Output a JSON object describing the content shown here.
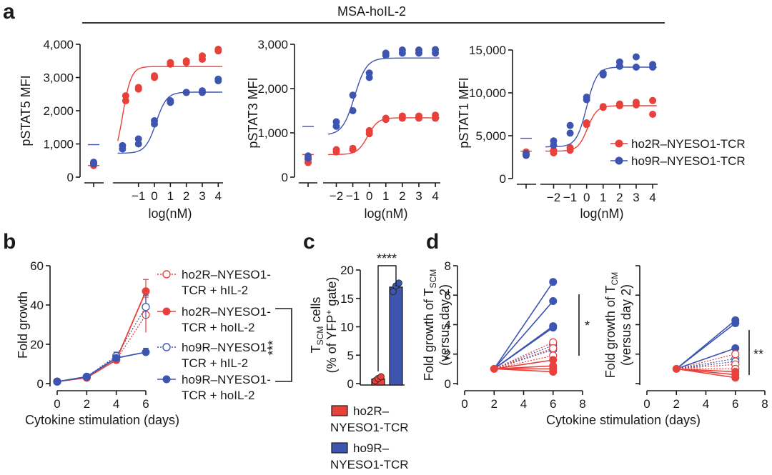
{
  "colors": {
    "red": "#e8403a",
    "blue": "#3d55b0",
    "red_light": "#ee7a72",
    "blue_light": "#6f83c8"
  },
  "panel_a": {
    "letter": "a",
    "header": "MSA-hoIL-2",
    "xlabel": "log(nM)",
    "legend": [
      {
        "label": "ho2R–NYESO1-TCR",
        "color": "red"
      },
      {
        "label": "ho9R–NYESO1-TCR",
        "color": "blue"
      }
    ]
  },
  "panel_b": {
    "letter": "b",
    "xlabel": "Cytokine stimulation (days)",
    "ylabel": "Fold growth",
    "xticks": [
      "0",
      "2",
      "4",
      "6"
    ],
    "yticks": [
      "0",
      "20",
      "40",
      "60"
    ],
    "significance": "***",
    "legend": [
      {
        "line1": "ho2R–NYESO1-",
        "line2": "TCR + hIL-2"
      },
      {
        "line1": "ho2R–NYESO1-",
        "line2": "TCR + hoIL-2"
      },
      {
        "line1": "ho9R–NYESO1-",
        "line2": "TCR + hIL-2"
      },
      {
        "line1": "ho9R–NYESO1-",
        "line2": "TCR + hoIL-2"
      }
    ]
  },
  "panel_c": {
    "letter": "c",
    "yticks": [
      "0",
      "5",
      "10",
      "15",
      "20"
    ],
    "ylabel_line1_main": "T",
    "ylabel_line1_sub": "SCM",
    "ylabel_line1_rest": " cells",
    "ylabel_line2_main": "(% of YFP",
    "ylabel_line2_sup": "+",
    "ylabel_line2_rest": " gate)",
    "significance": "****",
    "legend": [
      {
        "line1": "ho2R–",
        "line2": "NYESO1-TCR",
        "color": "red"
      },
      {
        "line1": "ho9R–",
        "line2": "NYESO1-TCR",
        "color": "blue"
      }
    ]
  },
  "panel_d": {
    "letter": "d",
    "xlabel": "Cytokine stimulation (days)",
    "xticks": [
      "0",
      "2",
      "4",
      "6",
      "8"
    ],
    "left": {
      "yticks": [
        "0",
        "2",
        "4",
        "6",
        "8"
      ],
      "ylabel_line1_main": "Fold growth of T",
      "ylabel_line1_sub": "SCM",
      "ylabel_line2": "(versus day 2)",
      "significance": "*"
    },
    "right": {
      "ylabel_line1_main": "Fold growth of T",
      "ylabel_line1_sub": "CM",
      "ylabel_line2": "(versus day 2)",
      "significance": "**"
    }
  },
  "chart_data": [
    {
      "type": "scatter",
      "panel": "a1",
      "ylabel": "pSTAT5 MFI",
      "xlim": [
        -2.6,
        4.3
      ],
      "ylim": [
        0,
        4000
      ],
      "xticks": [
        -1,
        0,
        1,
        2,
        3,
        4
      ],
      "xtick_labels": [
        "−1",
        "0",
        "1",
        "2",
        "3",
        "4"
      ],
      "yticks": [
        0,
        1000,
        2000,
        3000,
        4000
      ],
      "ytick_labels": [
        "0",
        "1,000",
        "2,000",
        "3,000",
        "4,000"
      ],
      "series": [
        {
          "name": "ho2R–NYESO1-TCR",
          "color": "red",
          "x": [
            -1.8,
            -1.8,
            -1,
            -1,
            0,
            0,
            1,
            1,
            2,
            2,
            3,
            3,
            4,
            4
          ],
          "y": [
            2300,
            2450,
            2650,
            2700,
            3050,
            3000,
            3400,
            3450,
            3500,
            3450,
            3650,
            3550,
            3850,
            3800
          ],
          "untreated": [
            350,
            420
          ],
          "fit": {
            "bottom": 350,
            "top": 3330,
            "ec50": -2.0,
            "hill": 1.6
          }
        },
        {
          "name": "ho9R–NYESO1-TCR",
          "color": "blue",
          "x": [
            -2,
            -2,
            -1,
            -1,
            0,
            0,
            1,
            1,
            2,
            2,
            3,
            3,
            4,
            4
          ],
          "y": [
            850,
            950,
            1000,
            1150,
            1600,
            1700,
            2250,
            2300,
            2550,
            2550,
            2550,
            2600,
            2900,
            2950
          ],
          "untreated": [
            450,
            400
          ],
          "fit": {
            "bottom": 720,
            "top": 2560,
            "ec50": 0.1,
            "hill": 1.3
          }
        }
      ]
    },
    {
      "type": "scatter",
      "panel": "a2",
      "ylabel": "pSTAT3 MFI",
      "xlim": [
        -2.8,
        4.3
      ],
      "ylim": [
        0,
        3000
      ],
      "xticks": [
        -2,
        -1,
        0,
        1,
        2,
        3,
        4
      ],
      "xtick_labels": [
        "−2",
        "−1",
        "0",
        "1",
        "2",
        "3",
        "4"
      ],
      "yticks": [
        0,
        1000,
        2000,
        3000
      ],
      "ytick_labels": [
        "0",
        "1,000",
        "2,000",
        "3,000"
      ],
      "series": [
        {
          "name": "ho2R–NYESO1-TCR",
          "color": "red",
          "x": [
            -2,
            -2,
            -1,
            -1,
            0,
            0,
            1,
            1,
            2,
            2,
            3,
            3,
            4,
            4
          ],
          "y": [
            570,
            620,
            620,
            650,
            980,
            1050,
            1300,
            1330,
            1380,
            1330,
            1380,
            1330,
            1400,
            1330
          ],
          "untreated": [
            330,
            400
          ],
          "fit": {
            "bottom": 510,
            "top": 1340,
            "ec50": -0.1,
            "hill": 1.4
          }
        },
        {
          "name": "ho9R–NYESO1-TCR",
          "color": "blue",
          "x": [
            -2,
            -2,
            -1,
            -1,
            0,
            0,
            1,
            1,
            2,
            2,
            3,
            3,
            4,
            4
          ],
          "y": [
            1150,
            1250,
            1500,
            1850,
            2250,
            2350,
            2750,
            2800,
            2800,
            2870,
            2800,
            2870,
            2800,
            2880
          ],
          "untreated": [
            480,
            430
          ],
          "fit": {
            "bottom": 950,
            "top": 2690,
            "ec50": -0.9,
            "hill": 1.2
          }
        }
      ]
    },
    {
      "type": "scatter",
      "panel": "a3",
      "ylabel": "pSTAT1 MFI",
      "xlim": [
        -2.8,
        4.3
      ],
      "ylim": [
        0,
        15000
      ],
      "xticks": [
        -2,
        -1,
        0,
        1,
        2,
        3,
        4
      ],
      "xtick_labels": [
        "−2",
        "−1",
        "0",
        "1",
        "2",
        "3",
        "4"
      ],
      "yticks": [
        0,
        5000,
        10000,
        15000
      ],
      "ytick_labels": [
        "0",
        "5,000",
        "10,000",
        "15,000"
      ],
      "series": [
        {
          "name": "ho2R–NYESO1-TCR",
          "color": "red",
          "x": [
            -2,
            -2,
            -1,
            -1,
            0,
            0,
            1,
            1,
            2,
            2,
            3,
            3,
            4,
            4
          ],
          "y": [
            3000,
            3300,
            3300,
            3600,
            6300,
            6500,
            8300,
            8400,
            8500,
            8700,
            8600,
            8900,
            7500,
            9100
          ],
          "untreated": [
            2800,
            3100
          ],
          "fit": {
            "bottom": 3200,
            "top": 8500,
            "ec50": 0.05,
            "hill": 1.5
          }
        },
        {
          "name": "ho9R–NYESO1-TCR",
          "color": "blue",
          "x": [
            -2,
            -2,
            -1,
            -1,
            0,
            0,
            1,
            1,
            2,
            2,
            3,
            3,
            4,
            4
          ],
          "y": [
            3900,
            4400,
            5300,
            6200,
            9200,
            9500,
            12100,
            12300,
            13100,
            13600,
            13000,
            14200,
            13300,
            13000
          ],
          "untreated": [
            2700,
            2900
          ],
          "fit": {
            "bottom": 3700,
            "top": 13000,
            "ec50": 0.0,
            "hill": 1.4
          }
        }
      ]
    },
    {
      "type": "line",
      "panel": "b",
      "xlabel": "Cytokine stimulation (days)",
      "ylabel": "Fold growth",
      "xlim": [
        0,
        6
      ],
      "ylim": [
        0,
        60
      ],
      "x": [
        0,
        2,
        4,
        6
      ],
      "series": [
        {
          "name": "ho2R–NYESO1-TCR + hIL-2",
          "color": "red",
          "style": "dotted",
          "marker": "open",
          "values": [
            1,
            3,
            12,
            35
          ],
          "err": [
            0,
            0.5,
            2,
            9
          ]
        },
        {
          "name": "ho2R–NYESO1-TCR + hoIL-2",
          "color": "red",
          "style": "solid",
          "marker": "filled",
          "values": [
            1,
            3,
            12,
            47
          ],
          "err": [
            0,
            0.5,
            2,
            6
          ]
        },
        {
          "name": "ho9R–NYESO1-TCR + hIL-2",
          "color": "blue",
          "style": "dotted",
          "marker": "open",
          "values": [
            1,
            3.5,
            14,
            39
          ],
          "err": [
            0,
            0.5,
            2,
            6
          ]
        },
        {
          "name": "ho9R–NYESO1-TCR + hoIL-2",
          "color": "blue",
          "style": "solid",
          "marker": "filled",
          "values": [
            1,
            3.5,
            13,
            16
          ],
          "err": [
            0,
            0.5,
            1.5,
            2
          ]
        }
      ]
    },
    {
      "type": "bar",
      "panel": "c",
      "ylim": [
        0,
        20
      ],
      "categories": [
        "ho2R–NYESO1-TCR",
        "ho9R–NYESO1-TCR"
      ],
      "values": [
        0.8,
        17
      ],
      "points": [
        [
          0.5,
          0.9,
          1.2
        ],
        [
          16.2,
          17.2,
          17.7
        ]
      ]
    },
    {
      "type": "line",
      "panel": "d-left",
      "xlabel": "Cytokine stimulation (days)",
      "ylabel": "Fold growth of T_SCM (versus day 2)",
      "xlim": [
        0,
        8
      ],
      "ylim": [
        0,
        8
      ],
      "x": [
        2,
        6
      ],
      "series": [
        {
          "color": "blue",
          "style": "solid",
          "marker": "filled",
          "values": [
            1,
            6.9
          ]
        },
        {
          "color": "blue",
          "style": "solid",
          "marker": "filled",
          "values": [
            1,
            5.6
          ]
        },
        {
          "color": "blue",
          "style": "solid",
          "marker": "filled",
          "values": [
            1,
            3.9
          ]
        },
        {
          "color": "blue",
          "style": "solid",
          "marker": "filled",
          "values": [
            1,
            3.8
          ]
        },
        {
          "color": "blue",
          "style": "dotted",
          "marker": "open",
          "values": [
            1,
            2.6
          ]
        },
        {
          "color": "blue",
          "style": "dotted",
          "marker": "open",
          "values": [
            1,
            2.3
          ]
        },
        {
          "color": "red",
          "style": "dotted",
          "marker": "open",
          "values": [
            1,
            2.8
          ]
        },
        {
          "color": "red",
          "style": "dotted",
          "marker": "open",
          "values": [
            1,
            2.4
          ]
        },
        {
          "color": "red",
          "style": "dotted",
          "marker": "open",
          "values": [
            1,
            1.9
          ]
        },
        {
          "color": "red",
          "style": "solid",
          "marker": "filled",
          "values": [
            1,
            1.6
          ]
        },
        {
          "color": "red",
          "style": "solid",
          "marker": "filled",
          "values": [
            1,
            1.2
          ]
        },
        {
          "color": "red",
          "style": "solid",
          "marker": "filled",
          "values": [
            1,
            1.0
          ]
        },
        {
          "color": "red",
          "style": "solid",
          "marker": "filled",
          "values": [
            1,
            0.8
          ]
        }
      ]
    },
    {
      "type": "line",
      "panel": "d-right",
      "xlabel": "Cytokine stimulation (days)",
      "ylabel": "Fold growth of T_CM (versus day 2)",
      "xlim": [
        0,
        8
      ],
      "ylim": [
        0,
        8
      ],
      "x": [
        2,
        6
      ],
      "series": [
        {
          "color": "blue",
          "style": "solid",
          "marker": "filled",
          "values": [
            1,
            4.3
          ]
        },
        {
          "color": "blue",
          "style": "solid",
          "marker": "filled",
          "values": [
            1,
            4.1
          ]
        },
        {
          "color": "blue",
          "style": "solid",
          "marker": "filled",
          "values": [
            1,
            2.4
          ]
        },
        {
          "color": "blue",
          "style": "dotted",
          "marker": "open",
          "values": [
            1,
            1.7
          ]
        },
        {
          "color": "blue",
          "style": "dotted",
          "marker": "open",
          "values": [
            1,
            1.5
          ]
        },
        {
          "color": "red",
          "style": "dotted",
          "marker": "open",
          "values": [
            1,
            2.0
          ]
        },
        {
          "color": "red",
          "style": "dotted",
          "marker": "open",
          "values": [
            1,
            1.3
          ]
        },
        {
          "color": "red",
          "style": "dotted",
          "marker": "open",
          "values": [
            1,
            1.0
          ]
        },
        {
          "color": "red",
          "style": "solid",
          "marker": "filled",
          "values": [
            1,
            0.8
          ]
        },
        {
          "color": "red",
          "style": "solid",
          "marker": "filled",
          "values": [
            1,
            0.6
          ]
        },
        {
          "color": "red",
          "style": "solid",
          "marker": "filled",
          "values": [
            1,
            0.4
          ]
        }
      ]
    }
  ]
}
